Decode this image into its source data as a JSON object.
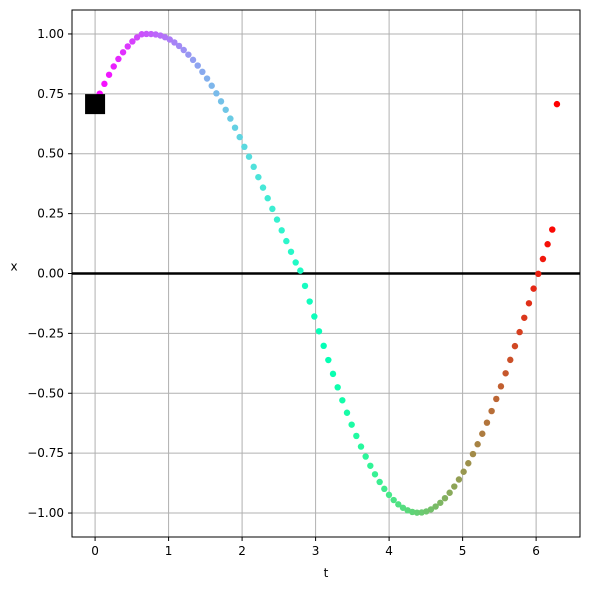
{
  "chart_data": {
    "type": "scatter",
    "title": "",
    "xlabel": "t",
    "ylabel": "x",
    "xlim": [
      -0.314,
      6.597
    ],
    "ylim": [
      -1.1,
      1.1
    ],
    "grid": true,
    "x_ticks": [
      0,
      1,
      2,
      3,
      4,
      5,
      6
    ],
    "x_tick_labels": [
      "0",
      "1",
      "2",
      "3",
      "4",
      "5",
      "6"
    ],
    "y_ticks": [
      -1.0,
      -0.75,
      -0.5,
      -0.25,
      0.0,
      0.25,
      0.5,
      0.75,
      1.0
    ],
    "y_tick_labels": [
      "−1.00",
      "−0.75",
      "−0.50",
      "−0.25",
      "0.00",
      "0.25",
      "0.50",
      "0.75",
      "1.00"
    ],
    "series": [
      {
        "function": "sin(t + pi/4)",
        "t_start": 0,
        "t_end": 6.2832,
        "num_points": 100,
        "x": [
          0.0,
          0.0635,
          0.1269,
          0.1904,
          0.2539,
          0.3173,
          0.3808,
          0.4443,
          0.5077,
          0.5712,
          0.6347,
          0.6981,
          0.7616,
          0.8251,
          0.8885,
          0.952,
          1.0155,
          1.0789,
          1.1424,
          1.2059,
          1.2693,
          1.3328,
          1.3963,
          1.4597,
          1.5232,
          1.5867,
          1.6501,
          1.7136,
          1.7771,
          1.8405,
          1.904,
          1.9675,
          2.0309,
          2.0944,
          2.1579,
          2.2213,
          2.2848,
          2.3483,
          2.4117,
          2.4752,
          2.5387,
          2.6021,
          2.6656,
          2.7291,
          2.7925,
          2.856,
          2.9195,
          2.9829,
          3.0464,
          3.1099,
          3.1733,
          3.2368,
          3.3003,
          3.3637,
          3.4272,
          3.4907,
          3.5541,
          3.6176,
          3.6811,
          3.7445,
          3.808,
          3.8715,
          3.9349,
          3.9984,
          4.0619,
          4.1253,
          4.1888,
          4.2523,
          4.3157,
          4.3792,
          4.4427,
          4.5061,
          4.5696,
          4.6331,
          4.6965,
          4.76,
          4.8235,
          4.8869,
          4.9504,
          5.0139,
          5.0773,
          5.1408,
          5.2043,
          5.2677,
          5.3312,
          5.3947,
          5.4581,
          5.5216,
          5.5851,
          5.6485,
          5.712,
          5.7755,
          5.8389,
          5.9024,
          5.9659,
          6.0293,
          6.0928,
          6.1563,
          6.2197,
          6.2832
        ],
        "y": [
          0.7071,
          0.7508,
          0.7917,
          0.8296,
          0.8642,
          0.8956,
          0.9235,
          0.9479,
          0.9686,
          0.9856,
          0.9988,
          1.0,
          0.9997,
          0.9979,
          0.9934,
          0.9863,
          0.9768,
          0.9646,
          0.95,
          0.933,
          0.9136,
          0.8919,
          0.868,
          0.842,
          0.8139,
          0.7839,
          0.7521,
          0.7186,
          0.6834,
          0.6467,
          0.6087,
          0.5694,
          0.5289,
          0.4875,
          0.4452,
          0.4022,
          0.3585,
          0.3143,
          0.2698,
          0.2251,
          0.1802,
          0.1353,
          0.0906,
          0.0461,
          0.012,
          -0.0518,
          -0.117,
          -0.1795,
          -0.2412,
          -0.3019,
          -0.3612,
          -0.419,
          -0.4751,
          -0.5293,
          -0.5813,
          -0.631,
          -0.6781,
          -0.7226,
          -0.7642,
          -0.8027,
          -0.8381,
          -0.8702,
          -0.8989,
          -0.9241,
          -0.9457,
          -0.9637,
          -0.978,
          -0.9886,
          -0.9954,
          -0.9984,
          -0.9976,
          -0.9931,
          -0.9848,
          -0.9728,
          -0.9572,
          -0.938,
          -0.9153,
          -0.8893,
          -0.86,
          -0.8276,
          -0.7921,
          -0.7538,
          -0.7127,
          -0.669,
          -0.6228,
          -0.5743,
          -0.5236,
          -0.471,
          -0.4166,
          -0.3606,
          -0.3032,
          -0.2446,
          -0.1849,
          -0.1243,
          -0.0631,
          -0.0014,
          0.0605,
          0.1222,
          0.1834,
          0.7071
        ]
      }
    ],
    "marker": {
      "t": 0,
      "x": 0.7071,
      "shape": "square",
      "color": "#000000"
    },
    "reference_line": {
      "y": 0,
      "color": "#000000"
    },
    "colormap": "rainbow",
    "point_color_start": "#8000ff",
    "point_color_end": "#ff0000",
    "grid_color": "#b0b0b0"
  }
}
